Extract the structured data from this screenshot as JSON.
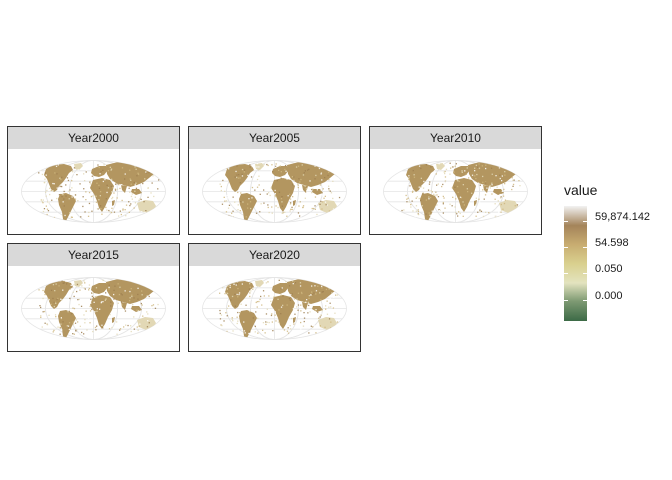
{
  "panels": [
    {
      "label": "Year2000",
      "seed": 11
    },
    {
      "label": "Year2005",
      "seed": 23
    },
    {
      "label": "Year2010",
      "seed": 37
    },
    {
      "label": "Year2015",
      "seed": 51
    },
    {
      "label": "Year2020",
      "seed": 67
    }
  ],
  "legend": {
    "title": "value",
    "labels": [
      "59,874.142",
      "54.598",
      "0.050",
      "0.000"
    ],
    "colors": [
      "#f2f2f2",
      "#a4845a",
      "#c7ab70",
      "#d9d08e",
      "#e3e3bf",
      "#7d9972",
      "#3c6a46"
    ]
  },
  "colors": {
    "land_main": "#b39660",
    "land_light": "#cfb77f",
    "land_pale": "#e2d8b5",
    "land_dark": "#9c7e50",
    "graticule": "#e5e5e5"
  }
}
